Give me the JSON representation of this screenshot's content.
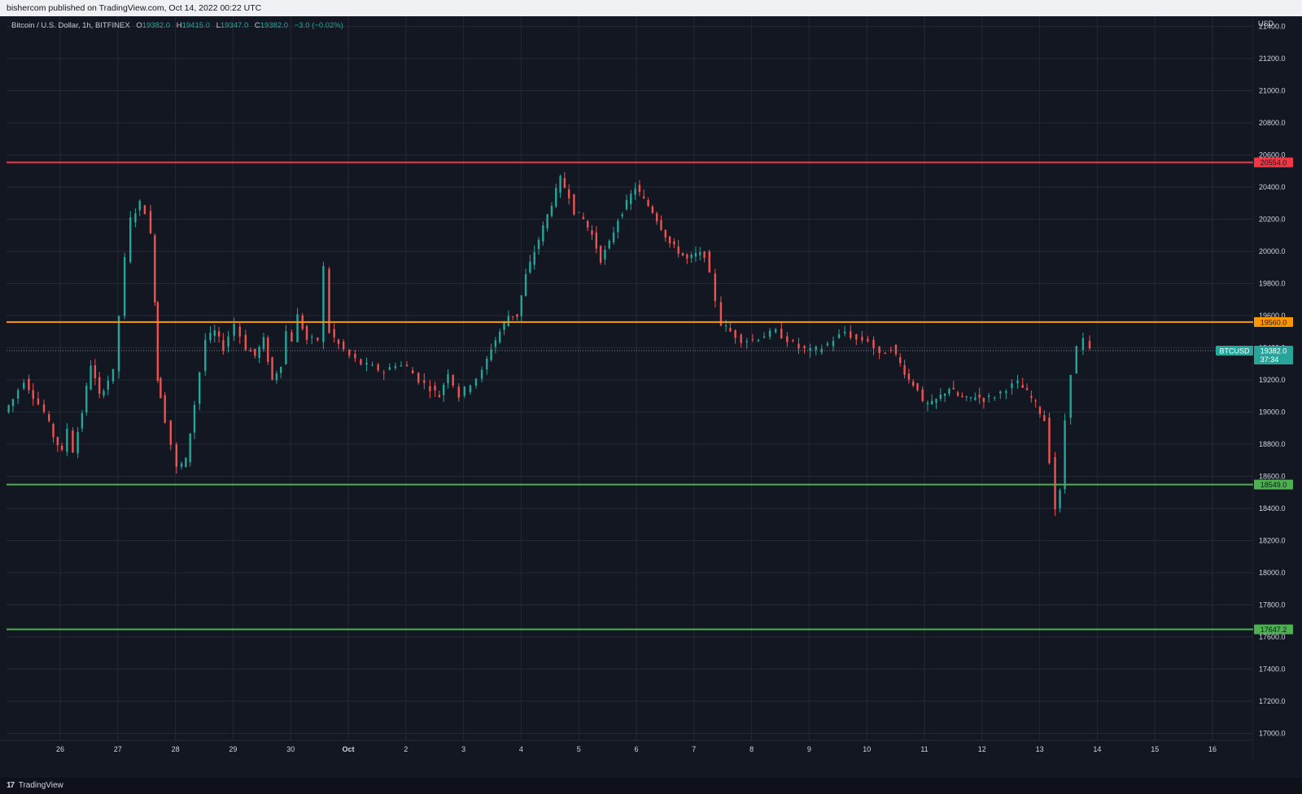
{
  "header": {
    "publish_text": "bishercom published on TradingView.com, Oct 14, 2022 00:22 UTC"
  },
  "footer": {
    "brand": "TradingView",
    "logo_text": "17"
  },
  "legend": {
    "symbol": "Bitcoin / U.S. Dollar, 1h, BITFINEX",
    "o_label": "O",
    "open": "19382.0",
    "h_label": "H",
    "high": "19415.0",
    "l_label": "L",
    "low": "19347.0",
    "c_label": "C",
    "close": "19382.0",
    "change": "−3.0 (−0.02%)"
  },
  "colors": {
    "background": "#131722",
    "grid": "#252935",
    "up": "#26a69a",
    "down": "#ef5350",
    "resistance": "#f23645",
    "pivot": "#ff9800",
    "support": "#4caf50"
  },
  "price_axis": {
    "currency": "USD",
    "ticks": [
      "21400.0",
      "21200.0",
      "21000.0",
      "20800.0",
      "20600.0",
      "20400.0",
      "20200.0",
      "20000.0",
      "19800.0",
      "19600.0",
      "19400.0",
      "19200.0",
      "19000.0",
      "18800.0",
      "18600.0",
      "18400.0",
      "18200.0",
      "18000.0",
      "17800.0",
      "17600.0",
      "17400.0",
      "17200.0",
      "17000.0"
    ]
  },
  "time_axis": {
    "labels": [
      "26",
      "27",
      "28",
      "29",
      "30",
      "Oct",
      "2",
      "3",
      "4",
      "5",
      "6",
      "7",
      "8",
      "9",
      "10",
      "11",
      "12",
      "13",
      "14",
      "15",
      "16"
    ]
  },
  "levels": [
    {
      "name": "resistance",
      "price": 20554.0,
      "label": "20554.0",
      "color": "#f23645"
    },
    {
      "name": "pivot",
      "price": 19560.0,
      "label": "19560.0",
      "color": "#ff9800"
    },
    {
      "name": "support-1",
      "price": 18549.0,
      "label": "18549.0",
      "color": "#4caf50"
    },
    {
      "name": "support-2",
      "price": 17647.2,
      "label": "17647.2",
      "color": "#4caf50"
    }
  ],
  "last_price": {
    "ticker": "BTCUSD",
    "price": 19382.0,
    "label": "19382.0",
    "countdown": "37:34"
  },
  "chart_data": {
    "type": "candlestick",
    "symbol": "BTCUSD",
    "interval": "1h",
    "y_range": [
      16880,
      21430
    ],
    "x_range": [
      25.1,
      16.5
    ],
    "path_points": [
      [
        25.1,
        19000
      ],
      [
        25.25,
        19080
      ],
      [
        25.45,
        19200
      ],
      [
        25.6,
        19100
      ],
      [
        25.8,
        19000
      ],
      [
        25.95,
        18850
      ],
      [
        26.1,
        18750
      ],
      [
        26.2,
        18900
      ],
      [
        26.3,
        18760
      ],
      [
        26.45,
        19000
      ],
      [
        26.6,
        19300
      ],
      [
        26.75,
        19100
      ],
      [
        26.9,
        19200
      ],
      [
        27.0,
        19250
      ],
      [
        27.1,
        19600
      ],
      [
        27.2,
        19950
      ],
      [
        27.3,
        20200
      ],
      [
        27.45,
        20300
      ],
      [
        27.55,
        20250
      ],
      [
        27.65,
        20100
      ],
      [
        27.7,
        19700
      ],
      [
        27.75,
        19200
      ],
      [
        27.8,
        19100
      ],
      [
        28.0,
        18800
      ],
      [
        28.1,
        18650
      ],
      [
        28.25,
        18700
      ],
      [
        28.4,
        19050
      ],
      [
        28.6,
        19450
      ],
      [
        28.75,
        19500
      ],
      [
        28.9,
        19400
      ],
      [
        29.1,
        19550
      ],
      [
        29.3,
        19400
      ],
      [
        29.45,
        19350
      ],
      [
        29.6,
        19450
      ],
      [
        29.75,
        19200
      ],
      [
        29.9,
        19300
      ],
      [
        30.0,
        19500
      ],
      [
        30.1,
        19450
      ],
      [
        30.2,
        19600
      ],
      [
        30.35,
        19450
      ],
      [
        30.55,
        19450
      ],
      [
        30.65,
        19900
      ],
      [
        30.75,
        19500
      ],
      [
        30.9,
        19420
      ],
      [
        31.1,
        19350
      ],
      [
        31.3,
        19300
      ],
      [
        31.5,
        19280
      ],
      [
        31.7,
        19250
      ],
      [
        31.9,
        19300
      ],
      [
        32.1,
        19280
      ],
      [
        32.3,
        19200
      ],
      [
        32.5,
        19150
      ],
      [
        32.65,
        19100
      ],
      [
        32.8,
        19250
      ],
      [
        33.0,
        19100
      ],
      [
        33.2,
        19180
      ],
      [
        33.4,
        19250
      ],
      [
        33.55,
        19400
      ],
      [
        33.7,
        19500
      ],
      [
        33.85,
        19600
      ],
      [
        34.0,
        19600
      ],
      [
        34.15,
        19850
      ],
      [
        34.3,
        20000
      ],
      [
        34.45,
        20150
      ],
      [
        34.6,
        20300
      ],
      [
        34.75,
        20450
      ],
      [
        34.9,
        20350
      ],
      [
        35.0,
        20250
      ],
      [
        35.15,
        20200
      ],
      [
        35.3,
        20100
      ],
      [
        35.45,
        19950
      ],
      [
        35.6,
        20050
      ],
      [
        35.75,
        20200
      ],
      [
        35.9,
        20300
      ],
      [
        36.05,
        20400
      ],
      [
        36.2,
        20320
      ],
      [
        36.35,
        20250
      ],
      [
        36.5,
        20150
      ],
      [
        36.65,
        20050
      ],
      [
        36.8,
        20000
      ],
      [
        36.95,
        19950
      ],
      [
        37.1,
        19980
      ],
      [
        37.25,
        19980
      ],
      [
        37.35,
        19850
      ],
      [
        37.45,
        19700
      ],
      [
        37.55,
        19550
      ],
      [
        37.7,
        19500
      ],
      [
        37.9,
        19450
      ],
      [
        38.1,
        19450
      ],
      [
        38.3,
        19480
      ],
      [
        38.5,
        19500
      ],
      [
        38.7,
        19450
      ],
      [
        38.9,
        19400
      ],
      [
        39.1,
        19380
      ],
      [
        39.3,
        19400
      ],
      [
        39.5,
        19450
      ],
      [
        39.7,
        19500
      ],
      [
        39.9,
        19450
      ],
      [
        40.1,
        19450
      ],
      [
        40.3,
        19350
      ],
      [
        40.5,
        19400
      ],
      [
        40.65,
        19300
      ],
      [
        40.8,
        19200
      ],
      [
        40.95,
        19150
      ],
      [
        41.05,
        19050
      ],
      [
        41.2,
        19050
      ],
      [
        41.35,
        19100
      ],
      [
        41.5,
        19150
      ],
      [
        41.65,
        19100
      ],
      [
        41.8,
        19080
      ],
      [
        41.95,
        19100
      ],
      [
        42.1,
        19080
      ],
      [
        42.3,
        19100
      ],
      [
        42.5,
        19150
      ],
      [
        42.7,
        19180
      ],
      [
        42.85,
        19120
      ],
      [
        43.0,
        19050
      ],
      [
        43.15,
        18950
      ],
      [
        43.25,
        18700
      ],
      [
        43.35,
        18400
      ],
      [
        43.42,
        18500
      ],
      [
        43.52,
        18950
      ],
      [
        43.62,
        19250
      ],
      [
        43.72,
        19400
      ],
      [
        43.85,
        19450
      ],
      [
        43.95,
        19382
      ]
    ]
  }
}
